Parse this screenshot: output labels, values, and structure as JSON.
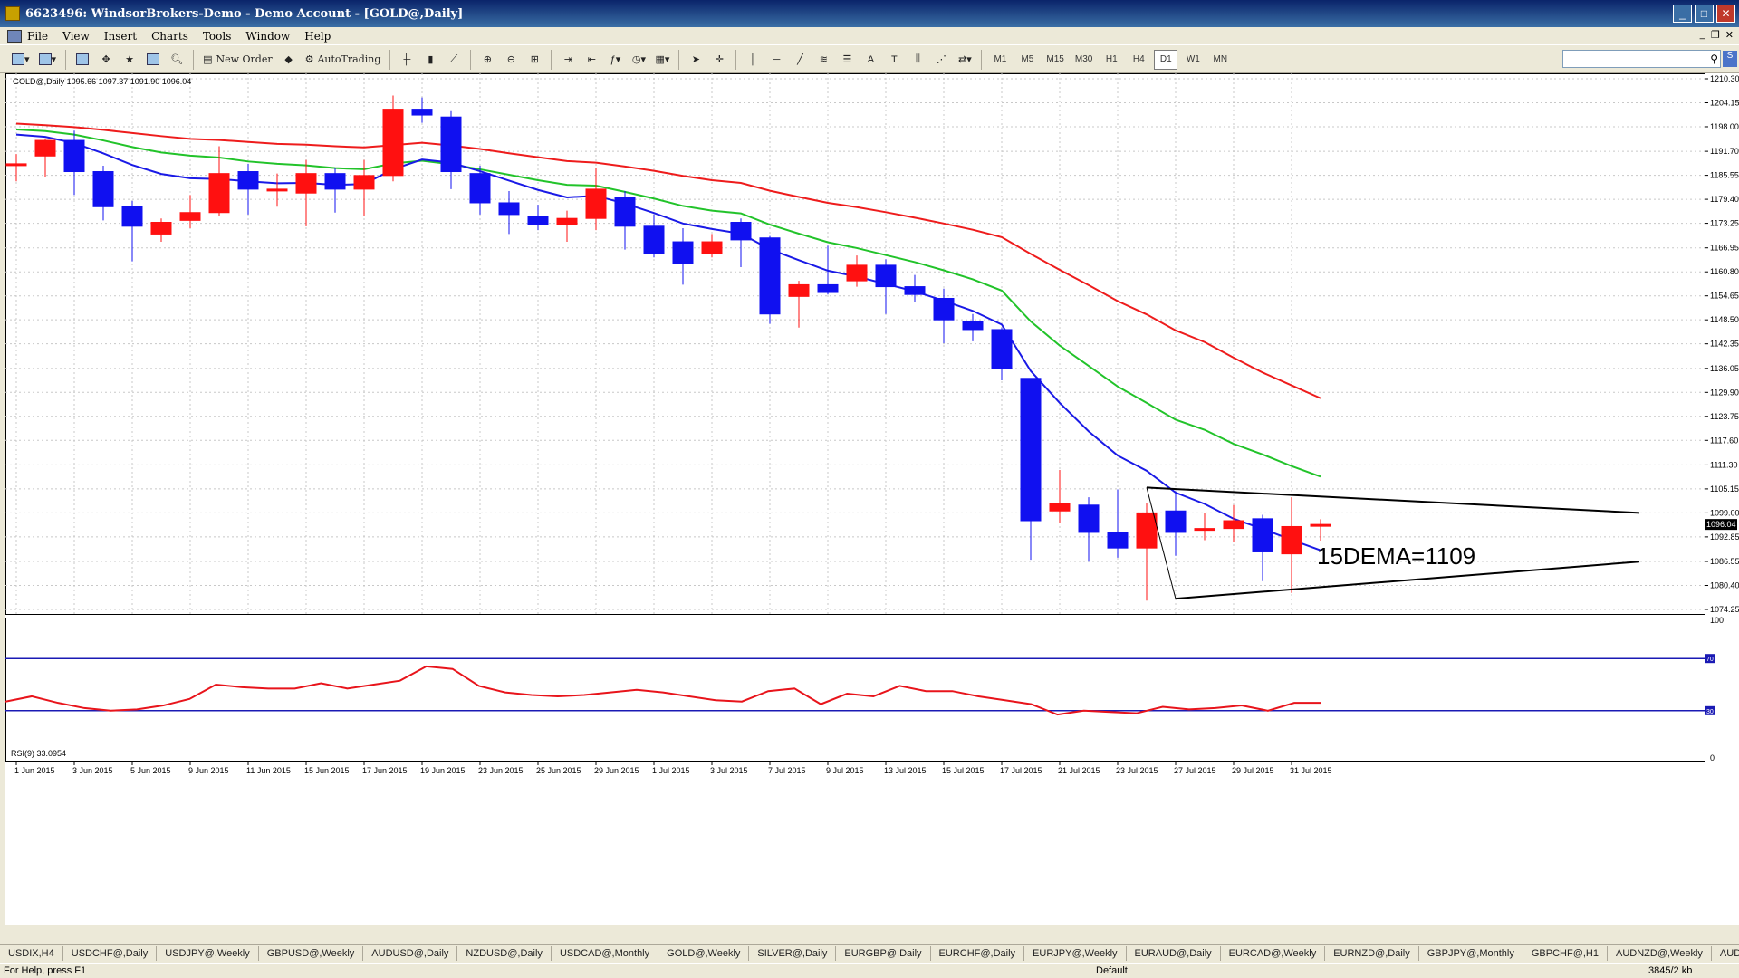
{
  "window": {
    "title": "6623496: WindsorBrokers-Demo - Demo Account - [GOLD@,Daily]"
  },
  "menu": [
    "File",
    "View",
    "Insert",
    "Charts",
    "Tools",
    "Window",
    "Help"
  ],
  "toolbar": {
    "new_order": "New Order",
    "autotrading": "AutoTrading",
    "timeframes": [
      "M1",
      "M5",
      "M15",
      "M30",
      "H1",
      "H4",
      "D1",
      "W1",
      "MN"
    ],
    "active_timeframe": "D1"
  },
  "chart": {
    "header": "GOLD@,Daily  1095.66  1097.37  1091.90  1096.04",
    "annotation": "15DEMA=1109",
    "current_price": "1096.04",
    "rsi_label": "RSI(9) 33.0954"
  },
  "chart_data": {
    "type": "candlestick",
    "price_axis_ticks": [
      "1210.30",
      "1204.15",
      "1198.00",
      "1191.70",
      "1185.55",
      "1179.40",
      "1173.25",
      "1166.95",
      "1160.80",
      "1154.65",
      "1148.50",
      "1142.35",
      "1136.05",
      "1129.90",
      "1123.75",
      "1117.60",
      "1111.30",
      "1105.15",
      "1099.00",
      "1092.85",
      "1086.55",
      "1080.40",
      "1074.25"
    ],
    "ylim": [
      1074.25,
      1210.3
    ],
    "x_tick_labels": [
      "1 Jun 2015",
      "3 Jun 2015",
      "5 Jun 2015",
      "9 Jun 2015",
      "11 Jun 2015",
      "15 Jun 2015",
      "17 Jun 2015",
      "19 Jun 2015",
      "23 Jun 2015",
      "25 Jun 2015",
      "29 Jun 2015",
      "1 Jul 2015",
      "3 Jul 2015",
      "7 Jul 2015",
      "9 Jul 2015",
      "13 Jul 2015",
      "15 Jul 2015",
      "17 Jul 2015",
      "21 Jul 2015",
      "23 Jul 2015",
      "27 Jul 2015",
      "29 Jul 2015",
      "31 Jul 2015"
    ],
    "candles": [
      {
        "o": 1188.5,
        "h": 1191.0,
        "l": 1184.0,
        "c": 1188.5
      },
      {
        "o": 1190.5,
        "h": 1195.0,
        "l": 1185.0,
        "c": 1194.5
      },
      {
        "o": 1194.5,
        "h": 1197.0,
        "l": 1180.5,
        "c": 1186.5
      },
      {
        "o": 1186.5,
        "h": 1188.0,
        "l": 1174.0,
        "c": 1177.5
      },
      {
        "o": 1177.5,
        "h": 1179.0,
        "l": 1163.5,
        "c": 1172.5
      },
      {
        "o": 1170.5,
        "h": 1174.5,
        "l": 1168.5,
        "c": 1173.5
      },
      {
        "o": 1174.0,
        "h": 1180.5,
        "l": 1172.0,
        "c": 1176.0
      },
      {
        "o": 1176.0,
        "h": 1193.0,
        "l": 1175.0,
        "c": 1186.0
      },
      {
        "o": 1186.5,
        "h": 1188.5,
        "l": 1175.5,
        "c": 1182.0
      },
      {
        "o": 1182.0,
        "h": 1186.0,
        "l": 1177.5,
        "c": 1182.0
      },
      {
        "o": 1181.0,
        "h": 1189.5,
        "l": 1172.5,
        "c": 1186.0
      },
      {
        "o": 1186.0,
        "h": 1187.5,
        "l": 1176.0,
        "c": 1182.0
      },
      {
        "o": 1182.0,
        "h": 1189.5,
        "l": 1175.0,
        "c": 1185.5
      },
      {
        "o": 1185.5,
        "h": 1206.0,
        "l": 1184.0,
        "c": 1202.5
      },
      {
        "o": 1202.5,
        "h": 1205.5,
        "l": 1199.0,
        "c": 1201.0
      },
      {
        "o": 1200.5,
        "h": 1202.0,
        "l": 1182.0,
        "c": 1186.5
      },
      {
        "o": 1186.0,
        "h": 1188.0,
        "l": 1175.5,
        "c": 1178.5
      },
      {
        "o": 1178.5,
        "h": 1181.5,
        "l": 1170.5,
        "c": 1175.5
      },
      {
        "o": 1175.0,
        "h": 1178.0,
        "l": 1171.5,
        "c": 1173.0
      },
      {
        "o": 1173.0,
        "h": 1176.5,
        "l": 1168.5,
        "c": 1174.5
      },
      {
        "o": 1174.5,
        "h": 1187.5,
        "l": 1171.5,
        "c": 1182.0
      },
      {
        "o": 1180.0,
        "h": 1181.5,
        "l": 1166.5,
        "c": 1172.5
      },
      {
        "o": 1172.5,
        "h": 1175.5,
        "l": 1164.5,
        "c": 1165.5
      },
      {
        "o": 1168.5,
        "h": 1172.0,
        "l": 1157.5,
        "c": 1163.0
      },
      {
        "o": 1165.5,
        "h": 1170.5,
        "l": 1164.5,
        "c": 1168.5
      },
      {
        "o": 1173.5,
        "h": 1174.5,
        "l": 1162.0,
        "c": 1169.0
      },
      {
        "o": 1169.5,
        "h": 1170.0,
        "l": 1147.5,
        "c": 1150.0
      },
      {
        "o": 1154.5,
        "h": 1158.5,
        "l": 1146.5,
        "c": 1157.5
      },
      {
        "o": 1157.5,
        "h": 1167.5,
        "l": 1155.0,
        "c": 1155.5
      },
      {
        "o": 1158.5,
        "h": 1165.0,
        "l": 1157.0,
        "c": 1162.5
      },
      {
        "o": 1162.5,
        "h": 1164.0,
        "l": 1150.0,
        "c": 1157.0
      },
      {
        "o": 1157.0,
        "h": 1160.0,
        "l": 1153.0,
        "c": 1155.0
      },
      {
        "o": 1154.0,
        "h": 1156.5,
        "l": 1142.5,
        "c": 1148.5
      },
      {
        "o": 1148.0,
        "h": 1150.0,
        "l": 1143.0,
        "c": 1146.0
      },
      {
        "o": 1146.0,
        "h": 1146.5,
        "l": 1133.0,
        "c": 1136.0
      },
      {
        "o": 1133.5,
        "h": 1133.5,
        "l": 1087.0,
        "c": 1097.0
      },
      {
        "o": 1099.5,
        "h": 1110.0,
        "l": 1096.5,
        "c": 1101.5
      },
      {
        "o": 1101.0,
        "h": 1103.0,
        "l": 1086.5,
        "c": 1094.0
      },
      {
        "o": 1094.0,
        "h": 1105.0,
        "l": 1087.5,
        "c": 1090.0
      },
      {
        "o": 1090.0,
        "h": 1101.5,
        "l": 1076.5,
        "c": 1099.0
      },
      {
        "o": 1099.5,
        "h": 1104.5,
        "l": 1088.0,
        "c": 1094.0
      },
      {
        "o": 1095.0,
        "h": 1099.0,
        "l": 1092.0,
        "c": 1095.0
      },
      {
        "o": 1095.0,
        "h": 1101.0,
        "l": 1091.5,
        "c": 1097.0
      },
      {
        "o": 1097.5,
        "h": 1098.5,
        "l": 1081.5,
        "c": 1089.0
      },
      {
        "o": 1088.5,
        "h": 1103.0,
        "l": 1078.5,
        "c": 1095.5
      },
      {
        "o": 1095.66,
        "h": 1097.37,
        "l": 1091.9,
        "c": 1096.04
      }
    ],
    "ema_red": [
      1198.8,
      1198.4,
      1197.9,
      1197.2,
      1196.4,
      1195.6,
      1194.9,
      1194.6,
      1194.1,
      1193.6,
      1193.4,
      1193.0,
      1192.7,
      1193.3,
      1193.9,
      1193.2,
      1192.3,
      1191.2,
      1190.2,
      1189.2,
      1188.8,
      1187.8,
      1186.7,
      1185.4,
      1184.3,
      1183.6,
      1181.6,
      1180.0,
      1178.5,
      1177.4,
      1176.1,
      1174.7,
      1173.2,
      1171.6,
      1169.7,
      1165.4,
      1161.3,
      1157.4,
      1153.3,
      1149.9,
      1145.8,
      1142.8,
      1138.8,
      1135.0,
      1131.7,
      1128.4
    ],
    "ema_green": [
      1197.3,
      1196.9,
      1196.0,
      1194.5,
      1192.8,
      1191.4,
      1190.6,
      1190.1,
      1189.1,
      1188.5,
      1188.1,
      1187.4,
      1187.1,
      1188.6,
      1189.3,
      1188.4,
      1187.1,
      1185.7,
      1184.3,
      1183.1,
      1182.9,
      1181.3,
      1179.6,
      1177.7,
      1176.5,
      1175.8,
      1172.9,
      1170.6,
      1168.4,
      1166.9,
      1165.1,
      1163.3,
      1161.2,
      1158.9,
      1156.0,
      1148.1,
      1141.9,
      1136.7,
      1131.4,
      1127.2,
      1122.9,
      1120.3,
      1116.7,
      1114.0,
      1111.0,
      1108.3
    ],
    "ema_blue": [
      1196.0,
      1195.4,
      1193.8,
      1191.2,
      1188.2,
      1185.9,
      1184.8,
      1184.6,
      1184.0,
      1183.5,
      1183.6,
      1183.1,
      1183.3,
      1187.1,
      1189.6,
      1188.8,
      1186.6,
      1184.2,
      1181.8,
      1179.9,
      1180.3,
      1178.3,
      1175.9,
      1173.2,
      1171.8,
      1170.6,
      1166.6,
      1163.8,
      1161.1,
      1159.6,
      1157.7,
      1155.8,
      1153.4,
      1150.8,
      1147.3,
      1135.4,
      1127.2,
      1119.9,
      1113.7,
      1109.8,
      1104.2,
      1101.3,
      1097.5,
      1094.9,
      1092.1,
      1089.4
    ],
    "triangle": {
      "upper": [
        [
          1105.5,
          39
        ],
        [
          1099.0,
          56
        ]
      ],
      "lower": [
        [
          1077.0,
          40
        ],
        [
          1086.5,
          56
        ]
      ]
    },
    "rsi": {
      "levels": [
        30,
        70
      ],
      "range": [
        0,
        100
      ],
      "values": [
        37,
        41,
        36,
        32,
        30,
        31,
        34,
        39,
        50,
        48,
        47,
        47,
        51,
        47,
        50,
        53,
        64,
        62,
        49,
        44,
        42,
        41,
        42,
        44,
        46,
        44,
        41,
        38,
        37,
        45,
        47,
        35,
        43,
        41,
        49,
        45,
        45,
        41,
        38,
        35,
        27,
        30,
        29,
        28,
        33,
        31,
        32,
        34,
        30,
        36,
        36
      ]
    }
  },
  "tabs": [
    "USDIX,H4",
    "USDCHF@,Daily",
    "USDJPY@,Weekly",
    "GBPUSD@,Weekly",
    "AUDUSD@,Daily",
    "NZDUSD@,Daily",
    "USDCAD@,Monthly",
    "GOLD@,Weekly",
    "SILVER@,Daily",
    "EURGBP@,Daily",
    "EURCHF@,Daily",
    "EURJPY@,Weekly",
    "EURAUD@,Daily",
    "EURCAD@,Weekly",
    "EURNZD@,Daily",
    "GBPJPY@,Monthly",
    "GBPCHF@,H1",
    "AUDNZD@,Weekly",
    "AUDJ"
  ],
  "status": {
    "help": "For Help, press F1",
    "profile": "Default",
    "traffic": "3845/2 kb"
  }
}
